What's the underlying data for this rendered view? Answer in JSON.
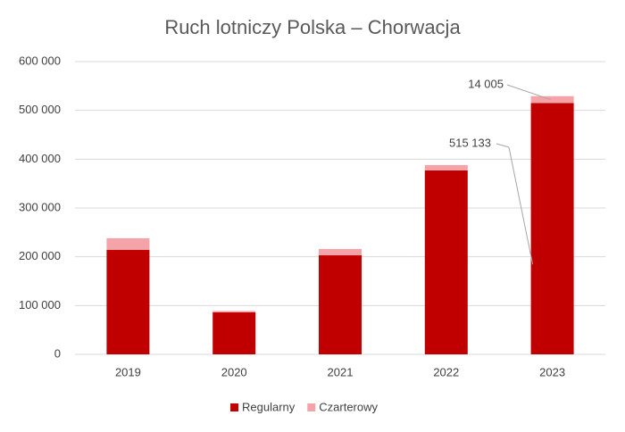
{
  "chart_data": {
    "type": "stacked-bar",
    "title": "Ruch lotniczy Polska – Chorwacja",
    "categories": [
      "2019",
      "2020",
      "2021",
      "2022",
      "2023"
    ],
    "series": [
      {
        "name": "Regularny",
        "color": "#c00000",
        "values": [
          214000,
          86000,
          203000,
          377000,
          515133
        ],
        "value_labels": [
          null,
          null,
          null,
          null,
          "515 133"
        ]
      },
      {
        "name": "Czarterowy",
        "color": "#f4a3a8",
        "values": [
          24000,
          3000,
          13000,
          11000,
          14005
        ],
        "value_labels": [
          null,
          null,
          null,
          null,
          "14 005"
        ]
      }
    ],
    "ylim": [
      0,
      600000
    ],
    "yticks": [
      0,
      {
        "value": 100000,
        "label": "100 000"
      },
      {
        "value": 200000,
        "label": "200 000"
      },
      {
        "value": 300000,
        "label": "300 000"
      },
      {
        "value": 400000,
        "label": "400 000"
      },
      {
        "value": 500000,
        "label": "500 000"
      },
      {
        "value": 600000,
        "label": "600 000"
      }
    ],
    "grid": true,
    "legend": "bottom"
  }
}
